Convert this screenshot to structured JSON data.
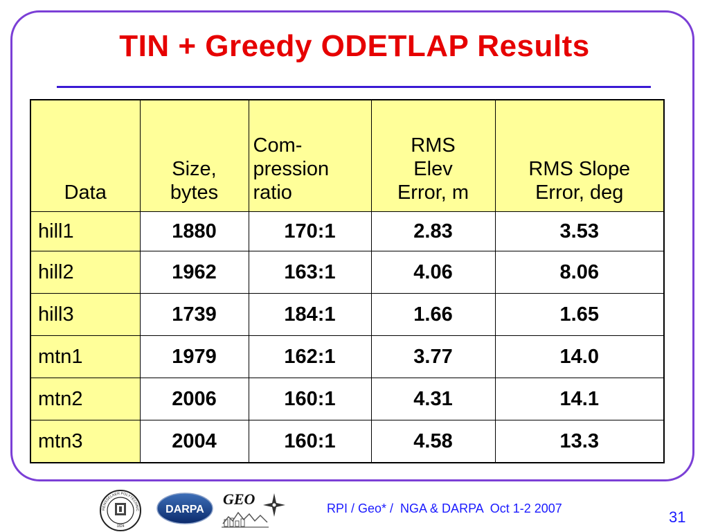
{
  "slide": {
    "title": "TIN + Greedy ODETLAP Results",
    "footer": "RPI / Geo* /  NGA & DARPA  Oct 1-2 2007",
    "page_number": "31"
  },
  "table": {
    "headers": [
      [
        "Data"
      ],
      [
        "Size,",
        "bytes"
      ],
      [
        "Com-",
        "pression",
        "ratio"
      ],
      [
        "RMS",
        "Elev",
        "Error, m"
      ],
      [
        "RMS Slope",
        "Error, deg"
      ]
    ],
    "rows": [
      {
        "data": "hill1",
        "size": "1880",
        "ratio": "170:1",
        "rms_elev": "2.83",
        "rms_slope": "3.53"
      },
      {
        "data": "hill2",
        "size": "1962",
        "ratio": "163:1",
        "rms_elev": "4.06",
        "rms_slope": "8.06"
      },
      {
        "data": "hill3",
        "size": "1739",
        "ratio": "184:1",
        "rms_elev": "1.66",
        "rms_slope": "1.65"
      },
      {
        "data": "mtn1",
        "size": "1979",
        "ratio": "162:1",
        "rms_elev": "3.77",
        "rms_slope": "14.0"
      },
      {
        "data": "mtn2",
        "size": "2006",
        "ratio": "160:1",
        "rms_elev": "4.31",
        "rms_slope": "14.1"
      },
      {
        "data": "mtn3",
        "size": "2004",
        "ratio": "160:1",
        "rms_elev": "4.58",
        "rms_slope": "13.3"
      }
    ]
  },
  "logos": {
    "rpi_seal_text": "RENSSELAER POLYTECHNIC INSTITUTE",
    "rpi_seal_year": "1824",
    "darpa_text": "DARPA",
    "geo_text": "GEO"
  },
  "colors": {
    "title": "#e60000",
    "frame": "#7b3fd6",
    "rule": "#3a1ad4",
    "header_fill": "#ffff99",
    "footer": "#1a1aff"
  }
}
